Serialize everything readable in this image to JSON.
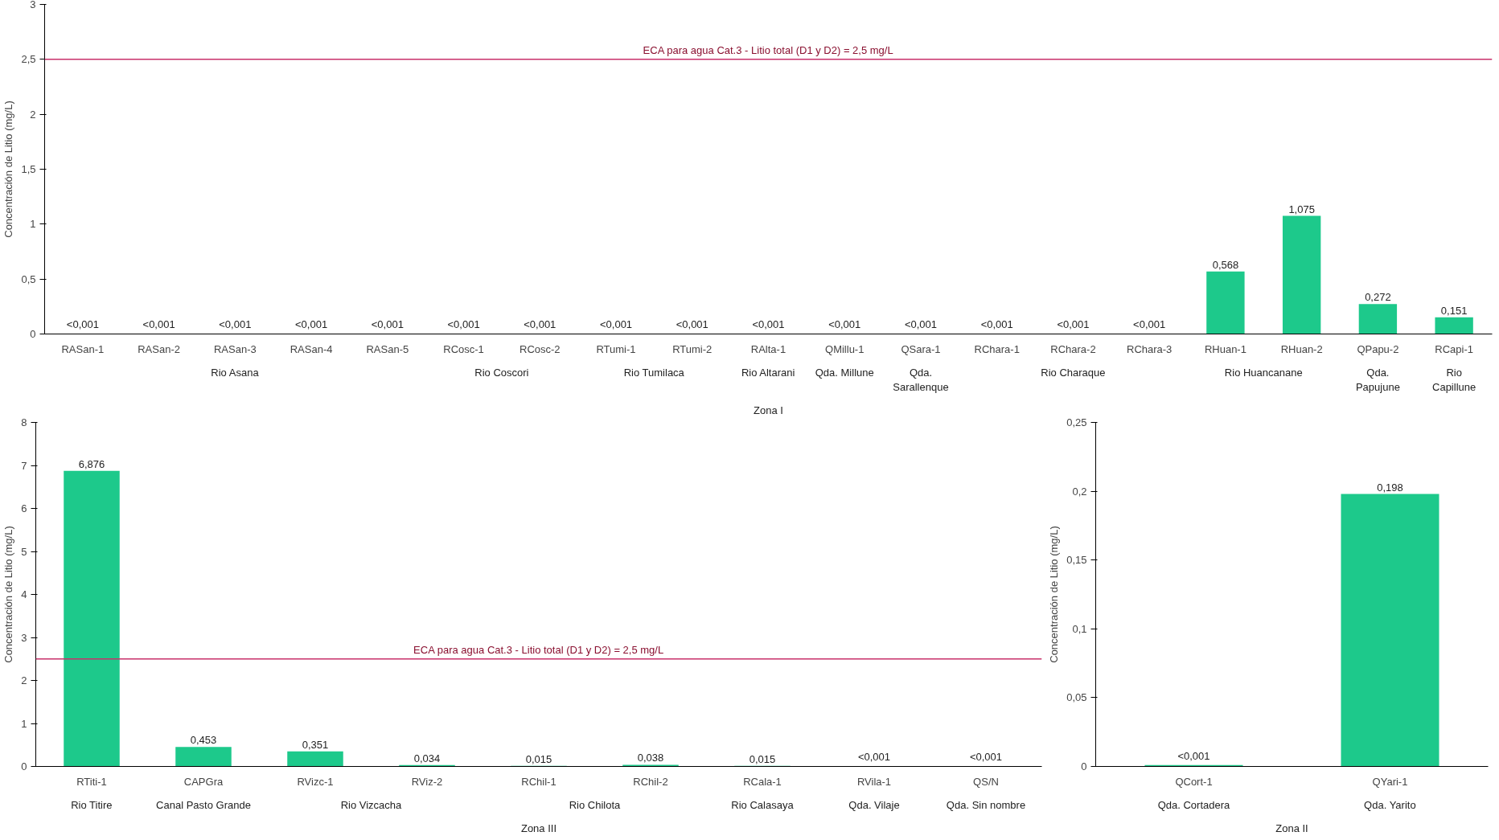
{
  "chart_data": [
    {
      "type": "bar",
      "ylabel": "Concentración de Litio (mg/L)",
      "color": "#1dc98b",
      "categories": [
        "RASan-1",
        "RASan-2",
        "RASan-3",
        "RASan-4",
        "RASan-5",
        "RCosc-1",
        "RCosc-2",
        "RTumi-1",
        "RTumi-2",
        "RAlta-1",
        "QMillu-1",
        "QSara-1",
        "RChara-1",
        "RChara-2",
        "RChara-3",
        "RHuan-1",
        "RHuan-2",
        "QPapu-2",
        "RCapi-1"
      ],
      "values": [
        0.001,
        0.001,
        0.001,
        0.001,
        0.001,
        0.001,
        0.001,
        0.001,
        0.001,
        0.001,
        0.001,
        0.001,
        0.001,
        0.001,
        0.001,
        0.568,
        1.075,
        0.272,
        0.151
      ],
      "value_labels": [
        "<0,001",
        "<0,001",
        "<0,001",
        "<0,001",
        "<0,001",
        "<0,001",
        "<0,001",
        "<0,001",
        "<0,001",
        "<0,001",
        "<0,001",
        "<0,001",
        "<0,001",
        "<0,001",
        "<0,001",
        "0,568",
        "1,075",
        "0,272",
        "0,151"
      ],
      "ylim": [
        0,
        3
      ],
      "yticks": [
        0,
        {
          "value": 0.5,
          "label": "0,5"
        },
        1,
        {
          "value": 1.5,
          "label": "1,5"
        },
        2,
        {
          "value": 2.5,
          "label": "2,5"
        },
        3
      ],
      "ref_lines": [
        {
          "axis": "y",
          "value": 2.5,
          "label": "ECA para agua Cat.3 - Litio total (D1 y D2) = 2,5 mg/L",
          "color": "#c8306a"
        }
      ],
      "annotations": [
        "Rio Asana",
        "Rio Coscori",
        "Rio Tumilaca",
        "Rio Altarani",
        "Qda. Millune",
        "Qda. Sarallenque",
        "Rio Charaque",
        "Rio Huancanane",
        "Qda. Papujune",
        "Rio Capillune",
        "Zona I"
      ]
    },
    {
      "type": "bar",
      "ylabel": "Concentración de Litio (mg/L)",
      "color": "#1dc98b",
      "categories": [
        "RTiti-1",
        "CAPGra",
        "RVizc-1",
        "RViz-2",
        "RChil-1",
        "RChil-2",
        "RCala-1",
        "RVila-1",
        "QS/N"
      ],
      "values": [
        6.876,
        0.453,
        0.351,
        0.034,
        0.015,
        0.038,
        0.015,
        0.001,
        0.001
      ],
      "value_labels": [
        "6,876",
        "0,453",
        "0,351",
        "0,034",
        "0,015",
        "0,038",
        "0,015",
        "<0,001",
        "<0,001"
      ],
      "ylim": [
        0,
        8
      ],
      "yticks": [
        0,
        1,
        2,
        3,
        4,
        5,
        6,
        7,
        8
      ],
      "ref_lines": [
        {
          "axis": "y",
          "value": 2.5,
          "label": "ECA para agua Cat.3 - Litio total (D1 y D2) = 2,5 mg/L",
          "color": "#c8306a"
        }
      ],
      "annotations": [
        "Rio Titire",
        "Canal Pasto Grande",
        "Rio Vizcacha",
        "Rio Chilota",
        "Rio Calasaya",
        "Qda. Vilaje",
        "Qda. Sin nombre",
        "Zona III"
      ]
    },
    {
      "type": "bar",
      "ylabel": "Concentración de Litio (mg/L)",
      "color": "#1dc98b",
      "categories": [
        "QCort-1",
        "QYari-1"
      ],
      "values": [
        0.001,
        0.198
      ],
      "value_labels": [
        "<0,001",
        "0,198"
      ],
      "ylim": [
        0,
        0.25
      ],
      "yticks": [
        0,
        {
          "value": 0.05,
          "label": "0,05"
        },
        {
          "value": 0.1,
          "label": "0,1"
        },
        {
          "value": 0.15,
          "label": "0,15"
        },
        {
          "value": 0.2,
          "label": "0,2"
        },
        {
          "value": 0.25,
          "label": "0,25"
        }
      ],
      "annotations": [
        "Qda. Cortadera",
        "Qda. Yarito",
        "Zona II"
      ]
    }
  ]
}
